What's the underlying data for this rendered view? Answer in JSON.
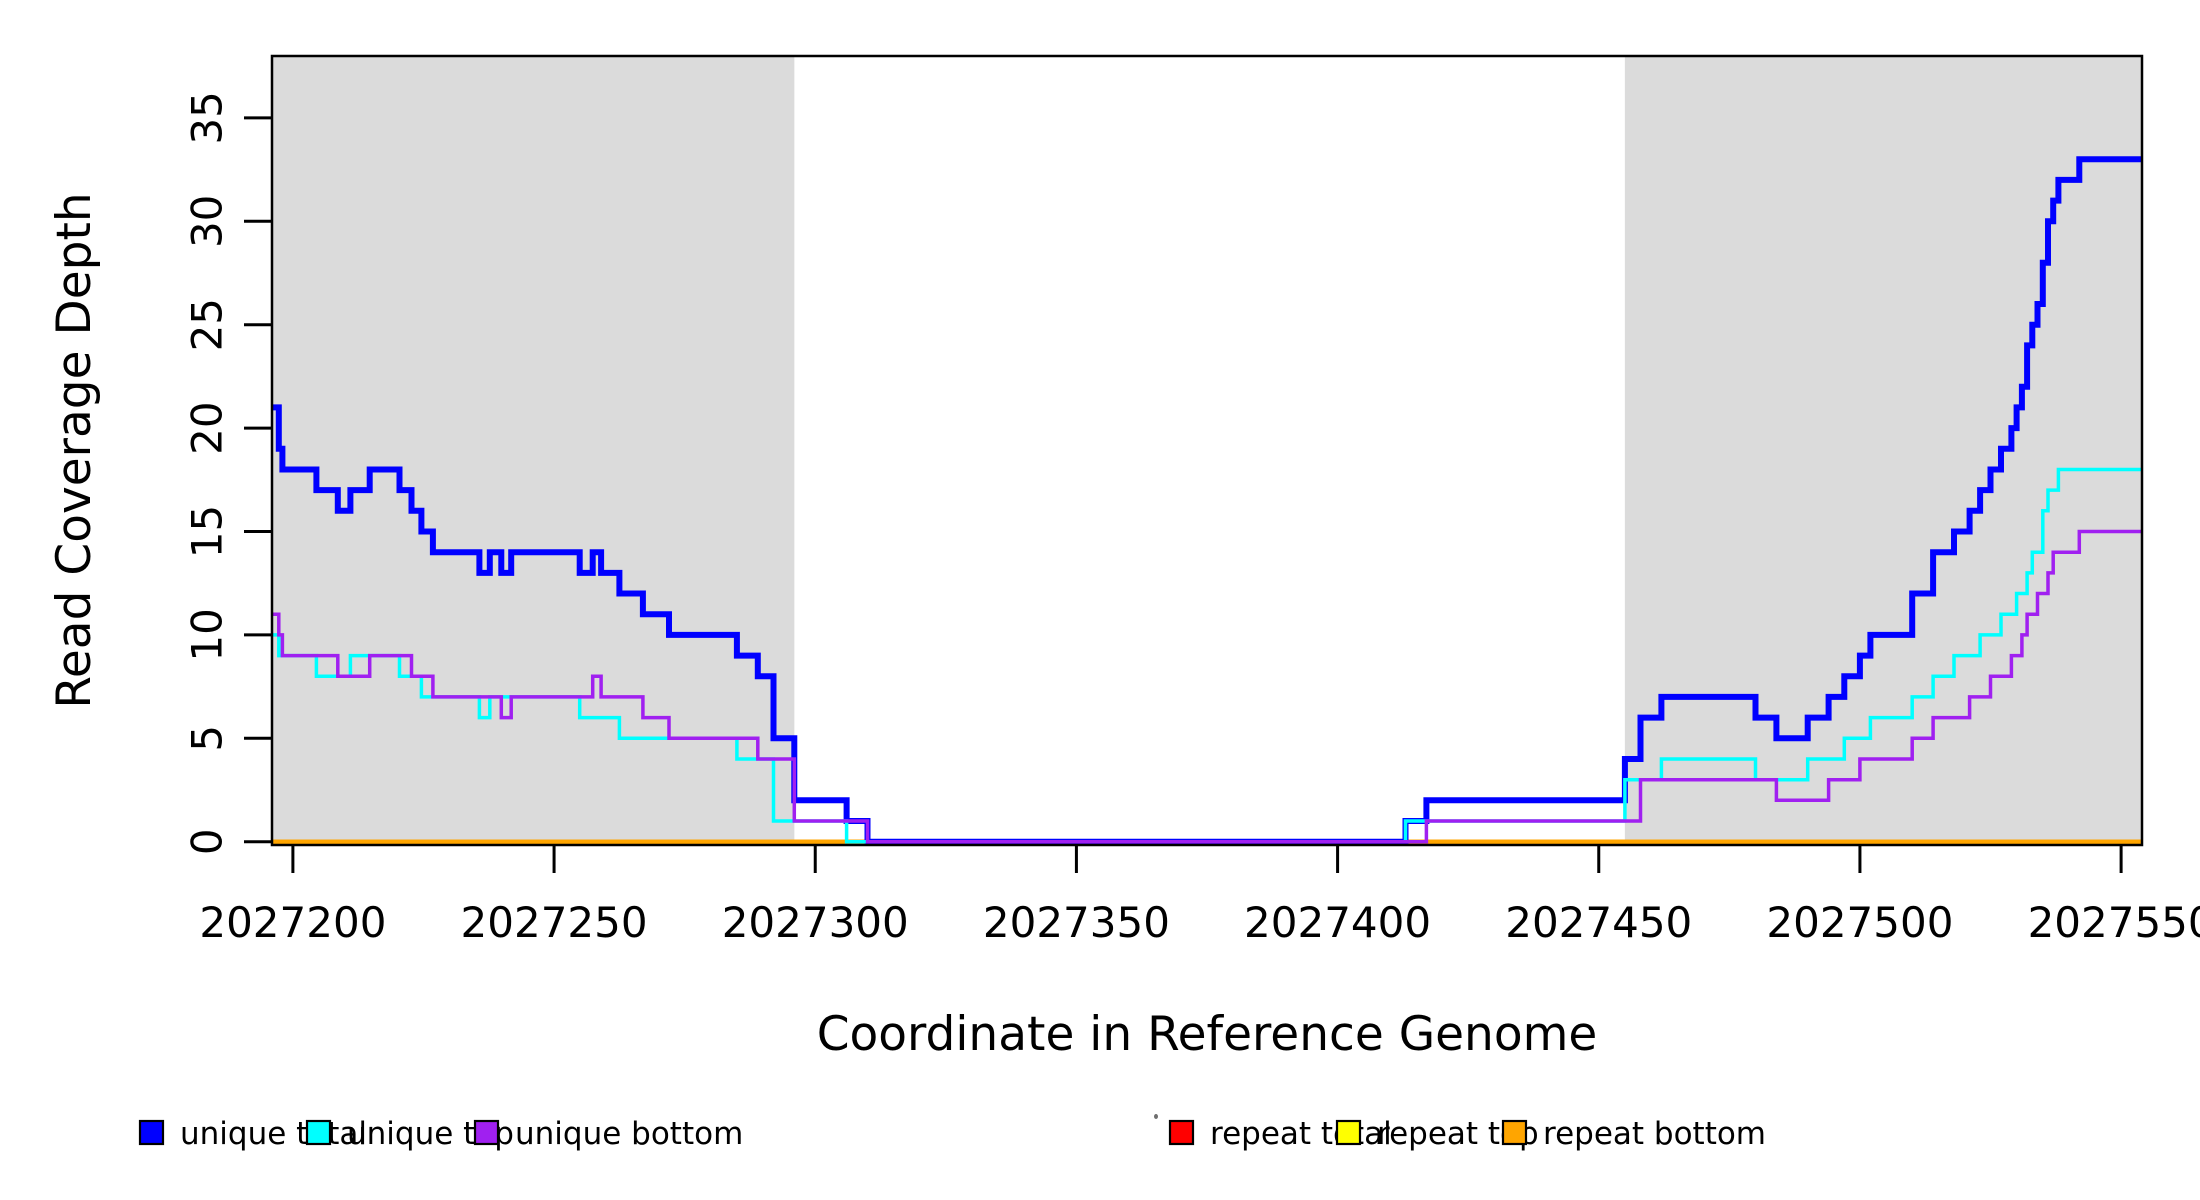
{
  "figure": {
    "background": "#FFFFFF",
    "frame_color": "#000000"
  },
  "chart_data": {
    "type": "line",
    "subtype": "step-coverage",
    "title": "",
    "xlabel": "Coordinate in Reference Genome",
    "ylabel": "Read Coverage Depth",
    "xlim": [
      2027196,
      2027554
    ],
    "ylim": [
      0,
      38
    ],
    "grid": false,
    "legend_position": "bottom",
    "x_ticks": [
      2027200,
      2027250,
      2027300,
      2027350,
      2027400,
      2027450,
      2027500,
      2027550
    ],
    "x_tick_labels": [
      "2027200",
      "2027250",
      "2027300",
      "2027350",
      "2027400",
      "2027450",
      "2027500",
      "2027550"
    ],
    "y_ticks": [
      0,
      5,
      10,
      15,
      20,
      25,
      30,
      35
    ],
    "y_tick_labels": [
      "0",
      "5",
      "10",
      "15",
      "20",
      "25",
      "30",
      "35"
    ],
    "shaded_regions": [
      {
        "x0": 2027196,
        "x1": 2027296,
        "color": "#DBDBDB",
        "meaning": "shaded region left"
      },
      {
        "x0": 2027455,
        "x1": 2027554,
        "color": "#DBDBDB",
        "meaning": "shaded region right"
      }
    ],
    "draw_order": [
      "repeat total",
      "repeat top",
      "repeat bottom",
      "unique total",
      "unique top",
      "unique bottom"
    ],
    "series": [
      {
        "name": "repeat total",
        "color": "#FF0000",
        "width": 3,
        "points": [
          [
            2027196,
            0
          ]
        ]
      },
      {
        "name": "repeat top",
        "color": "#FFFF00",
        "width": 3,
        "points": [
          [
            2027196,
            0
          ]
        ]
      },
      {
        "name": "repeat bottom",
        "color": "#FFA500",
        "width": 4.5,
        "points": [
          [
            2027196,
            0
          ]
        ]
      },
      {
        "name": "unique total",
        "color": "#0000FF",
        "width": 6,
        "points": [
          [
            2027196,
            21
          ],
          [
            2027197.3,
            19
          ],
          [
            2027198,
            18
          ],
          [
            2027204.5,
            17
          ],
          [
            2027208.6,
            16
          ],
          [
            2027211,
            17
          ],
          [
            2027214.7,
            18
          ],
          [
            2027220.4,
            17
          ],
          [
            2027222.7,
            16
          ],
          [
            2027224.6,
            15
          ],
          [
            2027226.8,
            14
          ],
          [
            2027235.7,
            13
          ],
          [
            2027237.7,
            14
          ],
          [
            2027239.9,
            13
          ],
          [
            2027241.8,
            14
          ],
          [
            2027254.9,
            13
          ],
          [
            2027257.4,
            14
          ],
          [
            2027259,
            13
          ],
          [
            2027262.5,
            12
          ],
          [
            2027267,
            11
          ],
          [
            2027272,
            10
          ],
          [
            2027285,
            9
          ],
          [
            2027289,
            8
          ],
          [
            2027292,
            5
          ],
          [
            2027296,
            2
          ],
          [
            2027306,
            1
          ],
          [
            2027310,
            0
          ],
          [
            2027413,
            1
          ],
          [
            2027417,
            2
          ],
          [
            2027455,
            4
          ],
          [
            2027458,
            6
          ],
          [
            2027462,
            7
          ],
          [
            2027480,
            6
          ],
          [
            2027484,
            5
          ],
          [
            2027490,
            6
          ],
          [
            2027494,
            7
          ],
          [
            2027497,
            8
          ],
          [
            2027500,
            9
          ],
          [
            2027502,
            10
          ],
          [
            2027510,
            12
          ],
          [
            2027514,
            14
          ],
          [
            2027518,
            15
          ],
          [
            2027521,
            16
          ],
          [
            2027523,
            17
          ],
          [
            2027525,
            18
          ],
          [
            2027527,
            19
          ],
          [
            2027529,
            20
          ],
          [
            2027530,
            21
          ],
          [
            2027531,
            22
          ],
          [
            2027532,
            24
          ],
          [
            2027533,
            25
          ],
          [
            2027534,
            26
          ],
          [
            2027535,
            28
          ],
          [
            2027536,
            30
          ],
          [
            2027537,
            31
          ],
          [
            2027538,
            32
          ],
          [
            2027542,
            33
          ]
        ]
      },
      {
        "name": "unique top",
        "color": "#00FFFF",
        "width": 3.5,
        "points": [
          [
            2027196,
            10
          ],
          [
            2027197.3,
            9
          ],
          [
            2027204.5,
            8
          ],
          [
            2027211,
            9
          ],
          [
            2027220.4,
            8
          ],
          [
            2027224.6,
            7
          ],
          [
            2027235.7,
            6
          ],
          [
            2027237.7,
            7
          ],
          [
            2027254.9,
            6
          ],
          [
            2027262.5,
            5
          ],
          [
            2027285,
            4
          ],
          [
            2027292,
            1
          ],
          [
            2027306,
            0
          ],
          [
            2027413,
            1
          ],
          [
            2027455,
            3
          ],
          [
            2027462,
            4
          ],
          [
            2027480,
            3
          ],
          [
            2027490,
            4
          ],
          [
            2027497,
            5
          ],
          [
            2027502,
            6
          ],
          [
            2027510,
            7
          ],
          [
            2027514,
            8
          ],
          [
            2027518,
            9
          ],
          [
            2027523,
            10
          ],
          [
            2027527,
            11
          ],
          [
            2027530,
            12
          ],
          [
            2027532,
            13
          ],
          [
            2027533,
            14
          ],
          [
            2027535,
            16
          ],
          [
            2027536,
            17
          ],
          [
            2027538,
            18
          ]
        ]
      },
      {
        "name": "unique bottom",
        "color": "#A020F0",
        "width": 3.5,
        "points": [
          [
            2027196,
            11
          ],
          [
            2027197.3,
            10
          ],
          [
            2027198,
            9
          ],
          [
            2027208.6,
            8
          ],
          [
            2027214.7,
            9
          ],
          [
            2027222.7,
            8
          ],
          [
            2027226.8,
            7
          ],
          [
            2027239.9,
            6
          ],
          [
            2027241.8,
            7
          ],
          [
            2027257.4,
            8
          ],
          [
            2027259,
            7
          ],
          [
            2027267,
            6
          ],
          [
            2027272,
            5
          ],
          [
            2027289,
            4
          ],
          [
            2027296,
            1
          ],
          [
            2027310,
            0
          ],
          [
            2027417,
            1
          ],
          [
            2027458,
            3
          ],
          [
            2027484,
            2
          ],
          [
            2027494,
            3
          ],
          [
            2027500,
            4
          ],
          [
            2027510,
            5
          ],
          [
            2027514,
            6
          ],
          [
            2027521,
            7
          ],
          [
            2027525,
            8
          ],
          [
            2027529,
            9
          ],
          [
            2027531,
            10
          ],
          [
            2027532,
            11
          ],
          [
            2027534,
            12
          ],
          [
            2027536,
            13
          ],
          [
            2027537,
            14
          ],
          [
            2027542,
            15
          ]
        ]
      }
    ]
  },
  "legend": {
    "items": [
      {
        "label": "unique total",
        "color": "#0000FF"
      },
      {
        "label": "unique top",
        "color": "#00FFFF"
      },
      {
        "label": "unique bottom",
        "color": "#A020F0"
      },
      {
        "label": "repeat total",
        "color": "#FF0000"
      },
      {
        "label": "repeat top",
        "color": "#FFFF00"
      },
      {
        "label": "repeat bottom",
        "color": "#FFA500"
      }
    ]
  }
}
